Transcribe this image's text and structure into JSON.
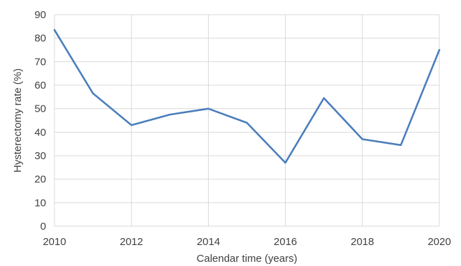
{
  "chart_data": {
    "type": "line",
    "title": "",
    "xlabel": "Calendar time (years)",
    "ylabel": "Hysterectomy rate (%)",
    "xlim": [
      2010,
      2020
    ],
    "ylim": [
      0,
      90
    ],
    "x_ticks": [
      2010,
      2012,
      2014,
      2016,
      2018,
      2020
    ],
    "y_ticks": [
      0,
      10,
      20,
      30,
      40,
      50,
      60,
      70,
      80,
      90
    ],
    "grid": true,
    "legend": "none",
    "x": [
      2010,
      2011,
      2012,
      2013,
      2014,
      2015,
      2016,
      2017,
      2018,
      2019,
      2020
    ],
    "series": [
      {
        "color": "#4a7ebb",
        "values": [
          83.5,
          56.5,
          43,
          47.5,
          50,
          44,
          27,
          54.5,
          37,
          34.5,
          75
        ]
      }
    ]
  }
}
